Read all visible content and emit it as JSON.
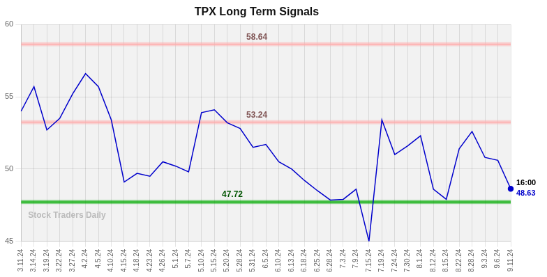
{
  "chart_data": {
    "type": "line",
    "title": "TPX Long Term Signals",
    "categories": [
      "3.11.24",
      "3.14.24",
      "3.19.24",
      "3.22.24",
      "3.27.24",
      "4.2.24",
      "4.5.24",
      "4.10.24",
      "4.15.24",
      "4.18.24",
      "4.23.24",
      "4.26.24",
      "5.1.24",
      "5.7.24",
      "5.10.24",
      "5.15.24",
      "5.20.24",
      "5.28.24",
      "5.31.24",
      "6.5.24",
      "6.10.24",
      "6.13.24",
      "6.18.24",
      "6.25.24",
      "6.28.24",
      "7.3.24",
      "7.9.24",
      "7.15.24",
      "7.19.24",
      "7.24.24",
      "7.30.24",
      "8.1.24",
      "8.12.24",
      "8.15.24",
      "8.22.24",
      "8.28.24",
      "9.3.24",
      "9.6.24",
      "9.11.24"
    ],
    "values": [
      54.0,
      55.7,
      52.7,
      53.5,
      55.2,
      56.6,
      55.7,
      53.4,
      49.1,
      49.7,
      49.5,
      50.5,
      50.2,
      49.8,
      53.9,
      54.1,
      53.2,
      52.8,
      51.5,
      51.7,
      50.5,
      50.0,
      49.2,
      48.5,
      47.85,
      47.9,
      48.6,
      45.0,
      53.4,
      51.0,
      51.6,
      52.3,
      48.6,
      47.9,
      51.4,
      52.6,
      50.8,
      50.6,
      48.63
    ],
    "color": "#0000cc",
    "ylim": [
      45,
      60
    ],
    "yticks": [
      45,
      50,
      55,
      60
    ],
    "grid": true,
    "reference_lines": [
      {
        "value": 58.64,
        "label": "58.64",
        "color": "#ffaaaa"
      },
      {
        "value": 53.24,
        "label": "53.24",
        "color": "#ffaaaa"
      },
      {
        "value": 47.72,
        "label": "47.72",
        "color": "#00aa00"
      }
    ],
    "annotations": [
      {
        "x": "9.11.24",
        "y": 48.63,
        "text": "16:00",
        "color": "#000000"
      },
      {
        "x": "9.11.24",
        "y": 48.63,
        "text": "48.63",
        "color": "#0000cc"
      },
      {
        "text": "Stock Traders Daily",
        "color": "#bbbbbb"
      }
    ]
  }
}
